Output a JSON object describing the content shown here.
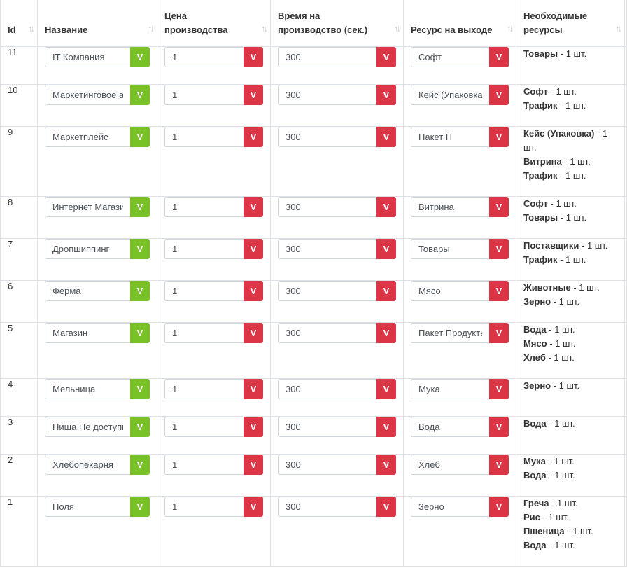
{
  "header": {
    "id": "Id",
    "name": "Название",
    "price": "Цена производства",
    "time": "Время на производство (сек.)",
    "output": "Ресурс на выходе",
    "required": "Необходимые ресурсы",
    "sort_icon": "↑↓"
  },
  "button_label": "V",
  "colors": {
    "green_button": "#78c227",
    "red_button": "#dc3545",
    "border": "#dee2e6"
  },
  "rows": [
    {
      "id": "11",
      "name": "IT Компания",
      "price": "1",
      "time": "300",
      "output": "Софт",
      "required": [
        {
          "name": "Товары",
          "qty": " - 1 шт."
        }
      ]
    },
    {
      "id": "10",
      "name": "Маркетинговое агентство",
      "price": "1",
      "time": "300",
      "output": "Кейс (Упаковка)",
      "required": [
        {
          "name": "Софт",
          "qty": " - 1 шт."
        },
        {
          "name": "Трафик",
          "qty": " - 1 шт."
        }
      ]
    },
    {
      "id": "9",
      "name": "Маркетплейс",
      "price": "1",
      "time": "300",
      "output": "Пакет IT",
      "required": [
        {
          "name": "Кейс (Упаковка)",
          "qty": " - 1 шт."
        },
        {
          "name": "Витрина",
          "qty": " - 1 шт."
        },
        {
          "name": "Трафик",
          "qty": " - 1 шт."
        }
      ]
    },
    {
      "id": "8",
      "name": "Интернет Магазин",
      "price": "1",
      "time": "300",
      "output": "Витрина",
      "required": [
        {
          "name": "Софт",
          "qty": " - 1 шт."
        },
        {
          "name": "Товары",
          "qty": " - 1 шт."
        }
      ]
    },
    {
      "id": "7",
      "name": "Дропшиппинг",
      "price": "1",
      "time": "300",
      "output": "Товары",
      "required": [
        {
          "name": "Поставщики",
          "qty": " - 1 шт."
        },
        {
          "name": "Трафик",
          "qty": " - 1 шт."
        }
      ]
    },
    {
      "id": "6",
      "name": "Ферма",
      "price": "1",
      "time": "300",
      "output": "Мясо",
      "required": [
        {
          "name": "Животные",
          "qty": " - 1 шт."
        },
        {
          "name": "Зерно",
          "qty": " - 1 шт."
        }
      ]
    },
    {
      "id": "5",
      "name": "Магазин",
      "price": "1",
      "time": "300",
      "output": "Пакет Продукты",
      "required": [
        {
          "name": "Вода",
          "qty": " - 1 шт."
        },
        {
          "name": "Мясо",
          "qty": " - 1 шт."
        },
        {
          "name": "Хлеб",
          "qty": " - 1 шт."
        }
      ]
    },
    {
      "id": "4",
      "name": "Мельница",
      "price": "1",
      "time": "300",
      "output": "Мука",
      "required": [
        {
          "name": "Зерно",
          "qty": " - 1 шт."
        }
      ]
    },
    {
      "id": "3",
      "name": "Ниша Не доступна",
      "price": "1",
      "time": "300",
      "output": "Вода",
      "required": [
        {
          "name": "Вода",
          "qty": " - 1 шт."
        }
      ]
    },
    {
      "id": "2",
      "name": "Хлебопекарня",
      "price": "1",
      "time": "300",
      "output": "Хлеб",
      "required": [
        {
          "name": "Мука",
          "qty": " - 1 шт."
        },
        {
          "name": "Вода",
          "qty": " - 1 шт."
        }
      ]
    },
    {
      "id": "1",
      "name": "Поля",
      "price": "1",
      "time": "300",
      "output": "Зерно",
      "required": [
        {
          "name": "Греча",
          "qty": " - 1 шт."
        },
        {
          "name": "Рис",
          "qty": " - 1 шт."
        },
        {
          "name": "Пшеница",
          "qty": " - 1 шт."
        },
        {
          "name": "Вода",
          "qty": " - 1 шт."
        }
      ]
    }
  ]
}
